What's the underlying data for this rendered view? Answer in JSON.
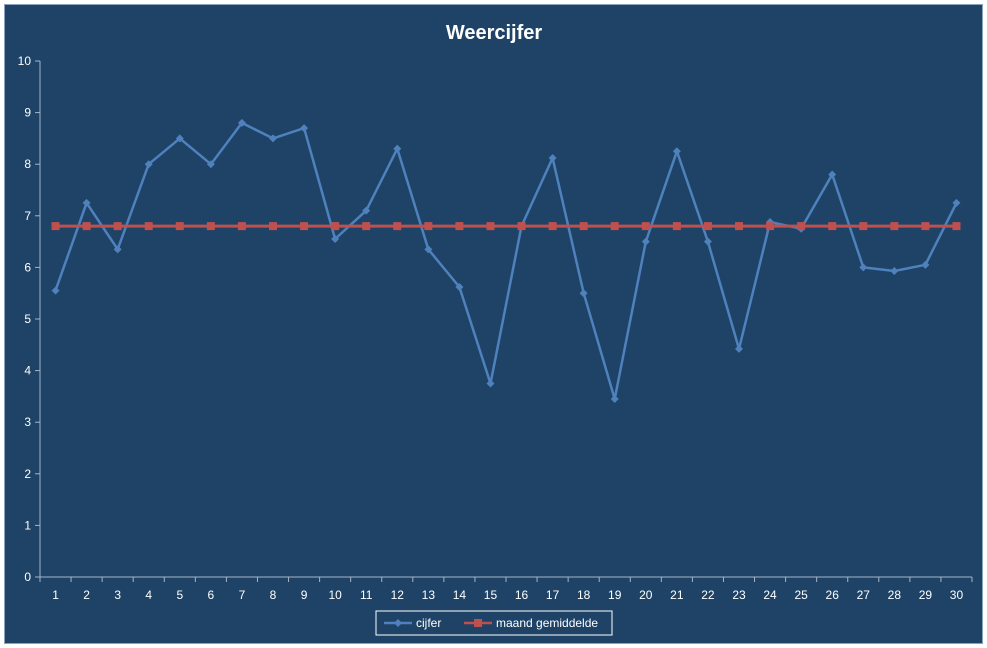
{
  "chart_data": {
    "type": "line",
    "title": "Weercijfer",
    "xlabel": "",
    "ylabel": "",
    "categories": [
      "1",
      "2",
      "3",
      "4",
      "5",
      "6",
      "7",
      "8",
      "9",
      "10",
      "11",
      "12",
      "13",
      "14",
      "15",
      "16",
      "17",
      "18",
      "19",
      "20",
      "21",
      "22",
      "23",
      "24",
      "25",
      "26",
      "27",
      "28",
      "29",
      "30"
    ],
    "ylim": [
      0,
      10
    ],
    "yticks": [
      "0",
      "1",
      "2",
      "3",
      "4",
      "5",
      "6",
      "7",
      "8",
      "9",
      "10"
    ],
    "grid": false,
    "legend_position": "bottom",
    "series": [
      {
        "name": "cijfer",
        "color": "#4f81bd",
        "marker": "diamond",
        "values": [
          5.55,
          7.25,
          6.35,
          8.0,
          8.5,
          8.0,
          8.8,
          8.5,
          8.7,
          6.55,
          7.1,
          8.3,
          6.35,
          5.62,
          3.75,
          6.8,
          8.12,
          5.5,
          3.45,
          6.5,
          8.25,
          6.5,
          4.42,
          6.88,
          6.75,
          7.8,
          6.0,
          5.93,
          6.05,
          7.25
        ]
      },
      {
        "name": "maand gemiddelde",
        "color": "#c0504d",
        "marker": "square",
        "values": [
          6.8,
          6.8,
          6.8,
          6.8,
          6.8,
          6.8,
          6.8,
          6.8,
          6.8,
          6.8,
          6.8,
          6.8,
          6.8,
          6.8,
          6.8,
          6.8,
          6.8,
          6.8,
          6.8,
          6.8,
          6.8,
          6.8,
          6.8,
          6.8,
          6.8,
          6.8,
          6.8,
          6.8,
          6.8,
          6.8
        ]
      }
    ]
  }
}
